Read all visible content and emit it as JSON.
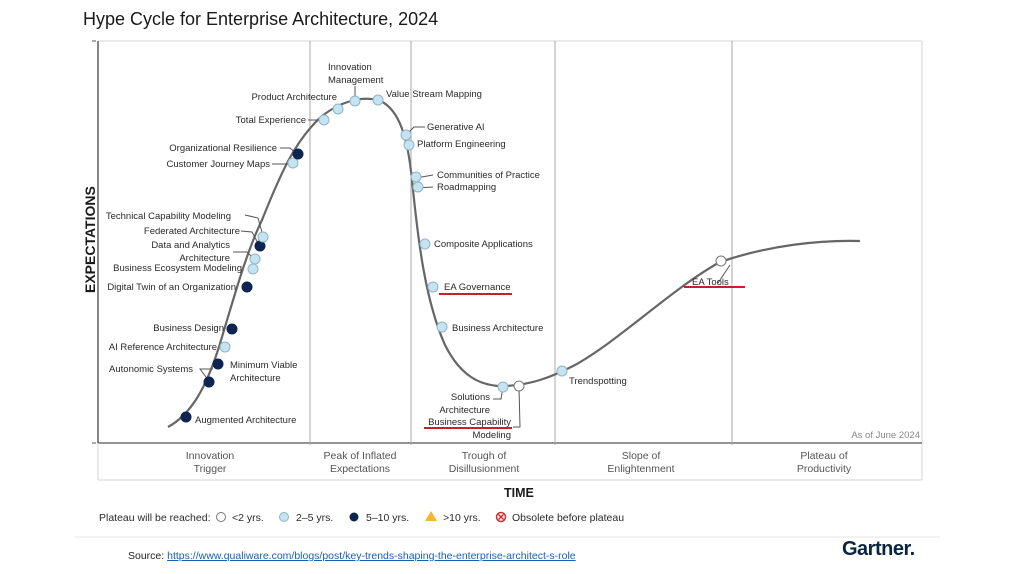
{
  "chart_data": {
    "type": "line",
    "title": "Hype Cycle for Enterprise Architecture, 2024",
    "xlabel": "TIME",
    "ylabel": "EXPECTATIONS",
    "as_of": "As of June 2024",
    "phases": [
      {
        "line1": "Innovation",
        "line2": "Trigger"
      },
      {
        "line1": "Peak of Inflated",
        "line2": "Expectations"
      },
      {
        "line1": "Trough of",
        "line2": "Disillusionment"
      },
      {
        "line1": "Slope of",
        "line2": "Enlightenment"
      },
      {
        "line1": "Plateau of",
        "line2": "Productivity"
      }
    ],
    "legend": {
      "title": "Plateau will be reached:",
      "items": [
        {
          "key": "lt2",
          "label": "<2 yrs.",
          "color": "#ffffff"
        },
        {
          "key": "2to5",
          "label": "2–5 yrs.",
          "color": "#c5e3f0"
        },
        {
          "key": "5to10",
          "label": "5–10 yrs.",
          "color": "#0d2550"
        },
        {
          "key": "gt10",
          "label": ">10 yrs.",
          "color": "#f2b632"
        },
        {
          "key": "obsolete",
          "label": "Obsolete before plateau",
          "color": "#d0312d"
        }
      ]
    },
    "technologies": [
      {
        "name": "Augmented Architecture",
        "phase": "Innovation Trigger",
        "position": 0.03,
        "plateau": "5to10"
      },
      {
        "name": "Autonomic Systems",
        "phase": "Innovation Trigger",
        "position": 0.07,
        "plateau": "5to10"
      },
      {
        "name": "Minimum Viable Architecture",
        "phase": "Innovation Trigger",
        "position": 0.09,
        "plateau": "5to10"
      },
      {
        "name": "AI Reference Architecture",
        "phase": "Innovation Trigger",
        "position": 0.11,
        "plateau": "2to5"
      },
      {
        "name": "Business Design",
        "phase": "Innovation Trigger",
        "position": 0.12,
        "plateau": "5to10"
      },
      {
        "name": "Digital Twin of an Organization",
        "phase": "Innovation Trigger",
        "position": 0.16,
        "plateau": "5to10"
      },
      {
        "name": "Business Ecosystem Modeling",
        "phase": "Innovation Trigger",
        "position": 0.18,
        "plateau": "2to5"
      },
      {
        "name": "Data and Analytics Architecture",
        "phase": "Innovation Trigger",
        "position": 0.19,
        "plateau": "2to5"
      },
      {
        "name": "Federated Architecture",
        "phase": "Innovation Trigger",
        "position": 0.2,
        "plateau": "5to10"
      },
      {
        "name": "Technical Capability Modeling",
        "phase": "Innovation Trigger",
        "position": 0.21,
        "plateau": "2to5"
      },
      {
        "name": "Customer Journey Maps",
        "phase": "Innovation Trigger",
        "position": 0.25,
        "plateau": "2to5"
      },
      {
        "name": "Organizational Resilience",
        "phase": "Innovation Trigger",
        "position": 0.26,
        "plateau": "5to10"
      },
      {
        "name": "Total Experience",
        "phase": "Peak of Inflated Expectations",
        "position": 0.29,
        "plateau": "2to5"
      },
      {
        "name": "Product Architecture",
        "phase": "Peak of Inflated Expectations",
        "position": 0.31,
        "plateau": "2to5"
      },
      {
        "name": "Innovation Management",
        "phase": "Peak of Inflated Expectations",
        "position": 0.33,
        "plateau": "2to5"
      },
      {
        "name": "Value Stream Mapping",
        "phase": "Peak of Inflated Expectations",
        "position": 0.35,
        "plateau": "2to5"
      },
      {
        "name": "Generative AI",
        "phase": "Trough of Disillusionment",
        "position": 0.38,
        "plateau": "2to5"
      },
      {
        "name": "Platform Engineering",
        "phase": "Trough of Disillusionment",
        "position": 0.385,
        "plateau": "2to5"
      },
      {
        "name": "Communities of Practice",
        "phase": "Trough of Disillusionment",
        "position": 0.39,
        "plateau": "2to5"
      },
      {
        "name": "Roadmapping",
        "phase": "Trough of Disillusionment",
        "position": 0.395,
        "plateau": "2to5"
      },
      {
        "name": "Composite Applications",
        "phase": "Trough of Disillusionment",
        "position": 0.4,
        "plateau": "2to5"
      },
      {
        "name": "EA Governance",
        "phase": "Trough of Disillusionment",
        "position": 0.41,
        "plateau": "2to5",
        "highlighted": true
      },
      {
        "name": "Business Architecture",
        "phase": "Trough of Disillusionment",
        "position": 0.42,
        "plateau": "2to5"
      },
      {
        "name": "Solutions Architecture",
        "phase": "Trough of Disillusionment",
        "position": 0.48,
        "plateau": "2to5"
      },
      {
        "name": "Business Capability Modeling",
        "phase": "Trough of Disillusionment",
        "position": 0.5,
        "plateau": "lt2",
        "highlighted": true
      },
      {
        "name": "Trendspotting",
        "phase": "Slope of Enlightenment",
        "position": 0.56,
        "plateau": "2to5"
      },
      {
        "name": "EA Tools",
        "phase": "Slope of Enlightenment",
        "position": 0.75,
        "plateau": "lt2",
        "highlighted": true
      }
    ]
  },
  "labels": {
    "augmented": "Augmented Architecture",
    "autonomic": "Autonomic Systems",
    "mva1": "Minimum Viable",
    "mva2": "Architecture",
    "aira": "AI Reference Architecture",
    "bizdesign": "Business Design",
    "dto": "Digital Twin of an Organization",
    "bem": "Business Ecosystem Modeling",
    "daa1": "Data and Analytics",
    "daa2": "Architecture",
    "fed": "Federated Architecture",
    "tcm": "Technical Capability Modeling",
    "cjm": "Customer Journey Maps",
    "orgres": "Organizational Resilience",
    "tx": "Total Experience",
    "prodarch": "Product Architecture",
    "innov1": "Innovation",
    "innov2": "Management",
    "vsm": "Value Stream Mapping",
    "genai": "Generative AI",
    "plateng": "Platform Engineering",
    "cop": "Communities of Practice",
    "roadmap": "Roadmapping",
    "compapp": "Composite Applications",
    "eagov": "EA Governance",
    "bizarch": "Business Architecture",
    "sol1": "Solutions",
    "sol2": "Architecture",
    "bcm1": "Business Capability",
    "bcm2": "Modeling",
    "trend": "Trendspotting",
    "eatools": "EA Tools"
  },
  "footer": {
    "source_label": "Source: ",
    "source_link": "https://www.qualiware.com/blogs/post/key-trends-shaping-the-enterprise-architect-s-role",
    "brand": "Gartner."
  }
}
